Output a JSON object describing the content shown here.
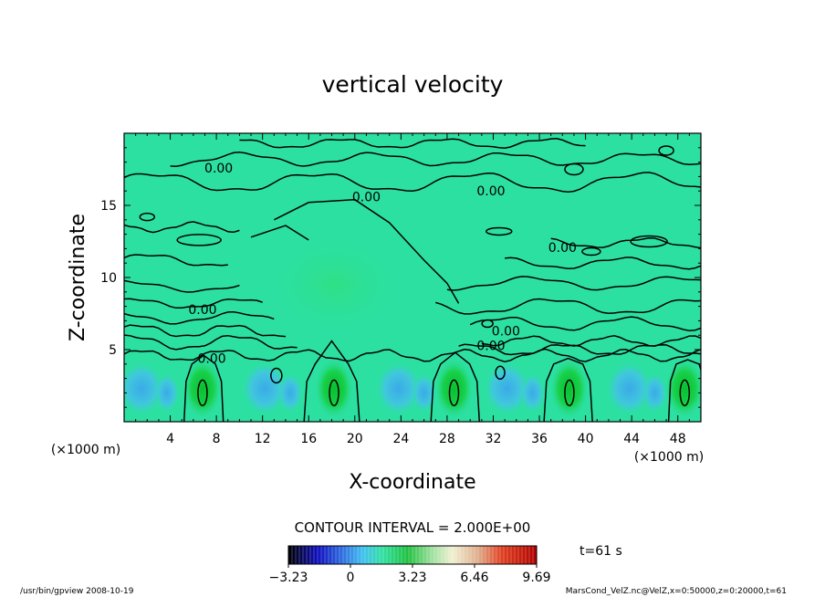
{
  "chart_data": {
    "type": "heatmap",
    "title": "vertical velocity",
    "xlabel": "X-coordinate",
    "ylabel": "Z-coordinate",
    "x_unit": "(×1000 m)",
    "y_unit": "(×1000 m)",
    "xlim": [
      0,
      50
    ],
    "ylim": [
      0,
      20
    ],
    "x_ticks": [
      4,
      8,
      12,
      16,
      20,
      24,
      28,
      32,
      36,
      40,
      44,
      48
    ],
    "y_ticks": [
      5,
      10,
      15
    ],
    "contour_interval_text": "CONTOUR INTERVAL = 2.000E+00",
    "contour_label": "0.00",
    "updraft_centers_x": [
      6.8,
      18.2,
      28.6,
      38.6,
      48.6
    ],
    "downdraft_centers_x": [
      1.5,
      12.2,
      23.8,
      33.2,
      43.8
    ],
    "colorbar": {
      "min": -3.23,
      "max": 9.69,
      "tick_values": [
        -3.23,
        0,
        3.23,
        6.46,
        9.69
      ],
      "tick_labels": [
        "−3.23",
        "0",
        "3.23",
        "6.46",
        "9.69"
      ]
    },
    "time_label": "t=61 s",
    "footer_left": "/usr/bin/gpview  2008-10-19",
    "footer_right": "MarsCond_VelZ.nc@VelZ,x=0:50000,z=0:20000,t=61",
    "colors": {
      "background_field": "#2ce0a2",
      "updraft": "#10c83a",
      "downdraft": "#3cb0e8"
    }
  }
}
